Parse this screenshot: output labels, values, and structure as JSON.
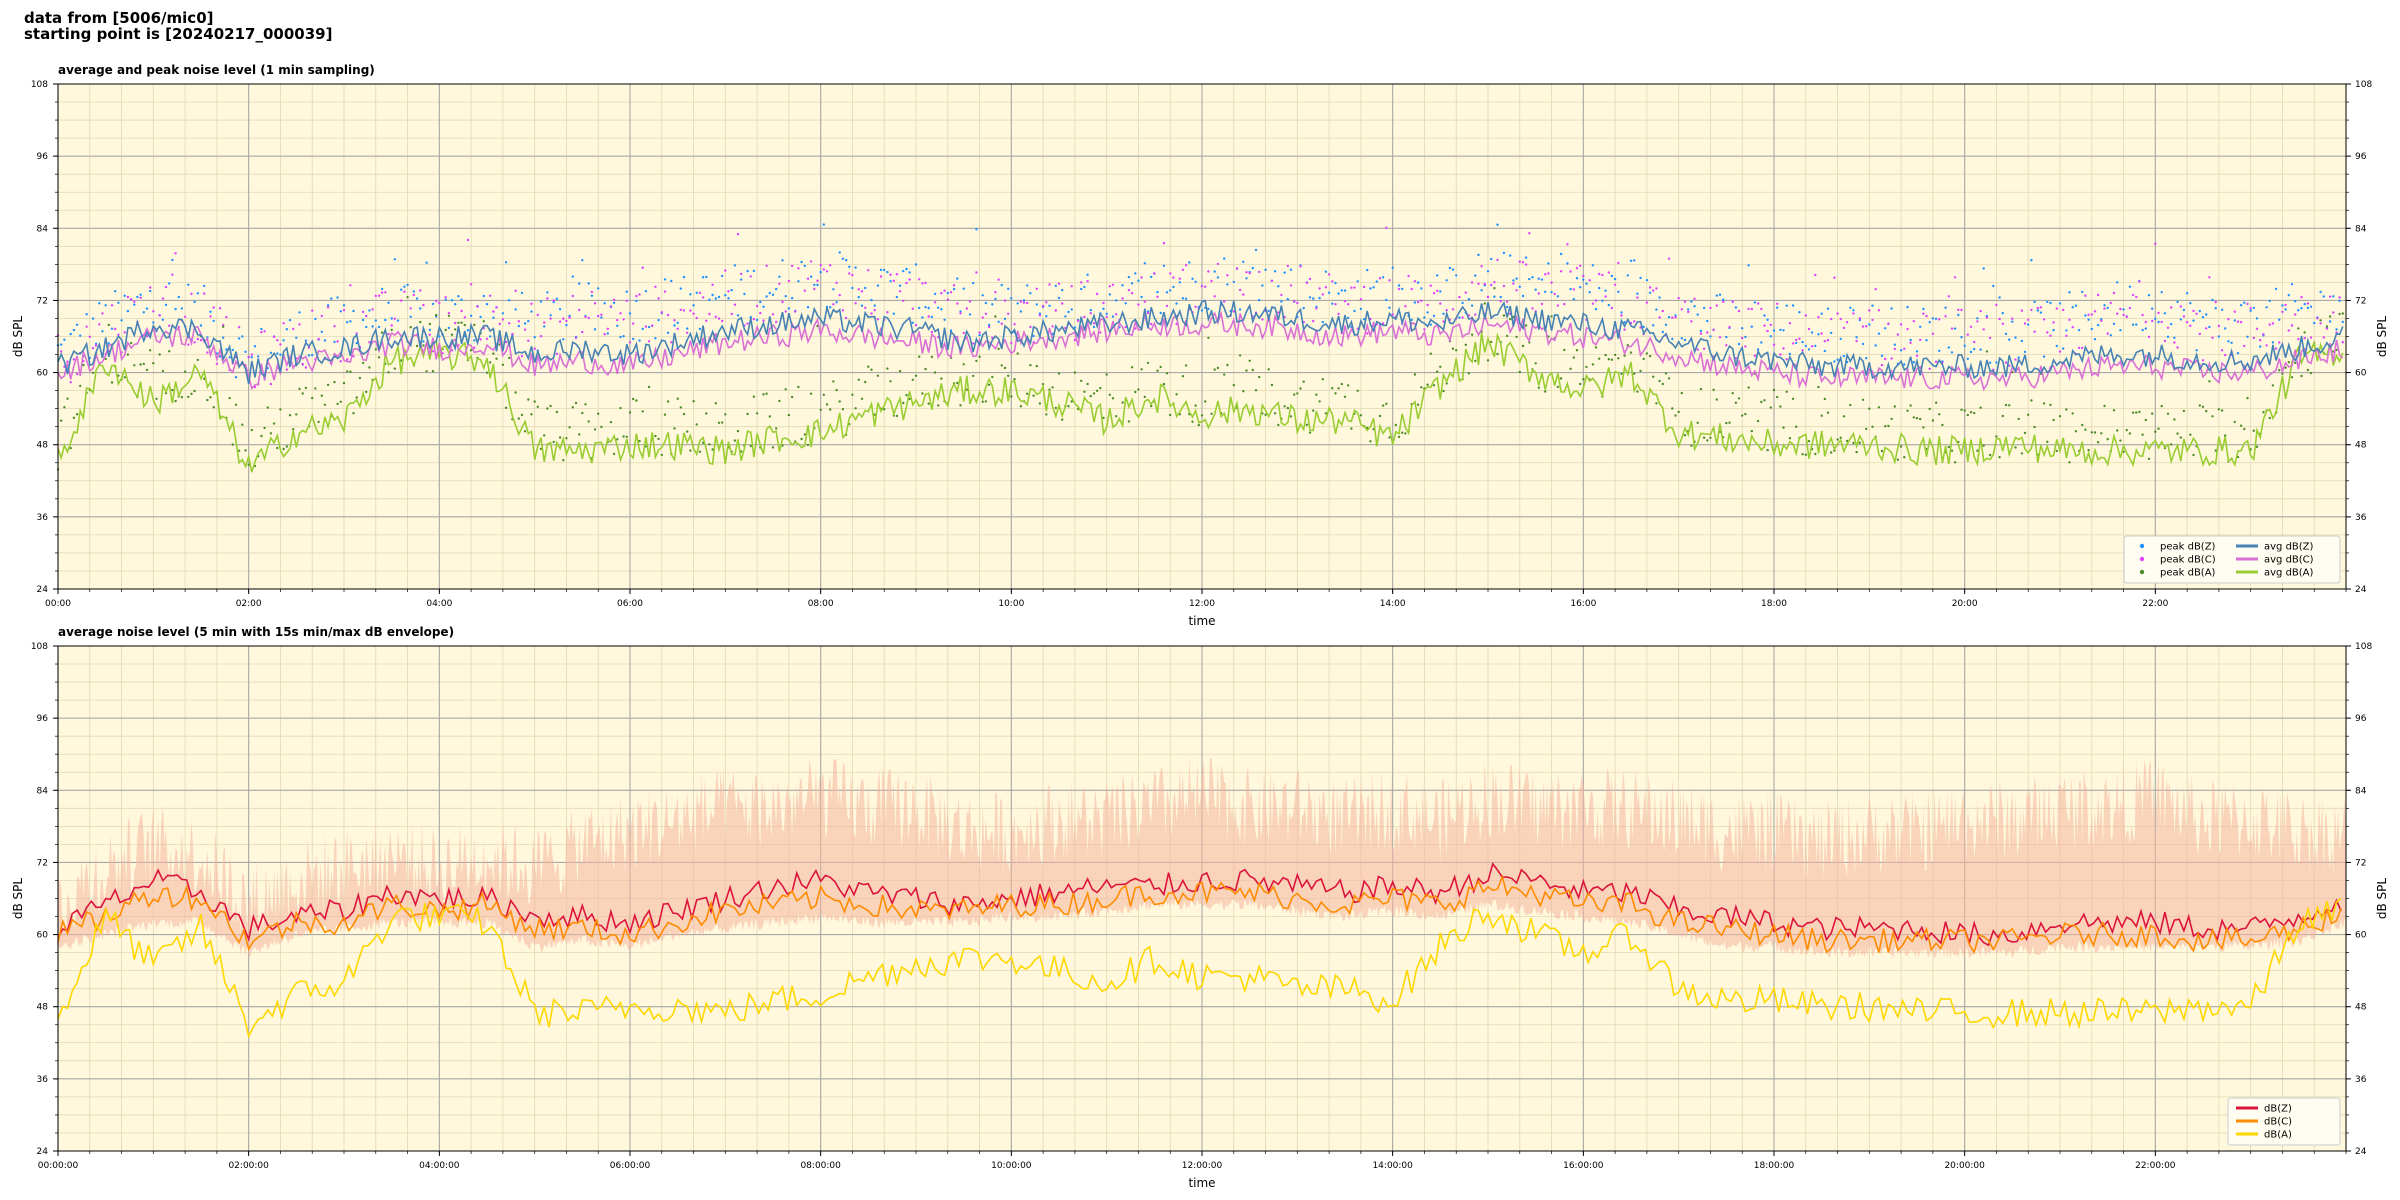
{
  "header": {
    "line1": "data from [5006/mic0]",
    "line2": "starting point is [20240217_000039]"
  },
  "colors": {
    "background": "#fff8dc",
    "grid_major": "#a9a9a9",
    "grid_minor": "#e2d8b4",
    "peak_z": "#1e90ff",
    "peak_c": "#e040fb",
    "peak_a": "#4c8c2b",
    "avg_z": "#4682b4",
    "avg_c": "#da70d6",
    "avg_a": "#9acd32",
    "env_z": "#dc143c",
    "env_c": "#ff8c00",
    "env_a": "#ffd700",
    "envelope_fill": "#f5b5a0"
  },
  "chart_data": [
    {
      "type": "line",
      "title": "average and peak noise level (1 min sampling)",
      "xlabel": "time",
      "ylabel": "dB SPL",
      "xlim_hours": [
        0,
        24
      ],
      "ylim": [
        24,
        108
      ],
      "x_ticks": [
        0,
        2,
        4,
        6,
        8,
        10,
        12,
        14,
        16,
        18,
        20,
        22
      ],
      "x_tick_labels": [
        "00:00",
        "02:00",
        "04:00",
        "06:00",
        "08:00",
        "10:00",
        "12:00",
        "14:00",
        "16:00",
        "18:00",
        "20:00",
        "22:00"
      ],
      "y_ticks": [
        24,
        36,
        48,
        60,
        72,
        84,
        96,
        108
      ],
      "y_tick_labels": [
        "24",
        "36",
        "48",
        "60",
        "72",
        "84",
        "96",
        "108"
      ],
      "grid": true,
      "legend_position": "bottom-right",
      "legend": [
        {
          "label": "peak dB(Z)",
          "kind": "dot",
          "color_key": "peak_z"
        },
        {
          "label": "peak dB(C)",
          "kind": "dot",
          "color_key": "peak_c"
        },
        {
          "label": "peak dB(A)",
          "kind": "dot",
          "color_key": "peak_a"
        },
        {
          "label": "avg dB(Z)",
          "kind": "line",
          "color_key": "avg_z"
        },
        {
          "label": "avg dB(C)",
          "kind": "line",
          "color_key": "avg_c"
        },
        {
          "label": "avg dB(A)",
          "kind": "line",
          "color_key": "avg_a"
        }
      ],
      "x_hours": [
        0,
        0.5,
        1,
        1.5,
        2,
        2.5,
        3,
        3.5,
        4,
        4.5,
        5,
        5.5,
        6,
        6.5,
        7,
        7.5,
        8,
        8.5,
        9,
        9.5,
        10,
        10.5,
        11,
        11.5,
        12,
        12.5,
        13,
        13.5,
        14,
        14.5,
        15,
        15.5,
        16,
        16.5,
        17,
        17.5,
        18,
        18.5,
        19,
        19.5,
        20,
        20.5,
        21,
        21.5,
        22,
        22.5,
        23,
        23.5,
        24
      ],
      "series": [
        {
          "name": "avg dB(Z)",
          "color_key": "avg_z",
          "values": [
            61,
            64,
            68,
            67,
            60,
            63,
            64,
            66,
            66,
            66,
            63,
            64,
            63,
            65,
            67,
            68,
            69,
            68,
            67,
            65,
            66,
            67,
            68,
            69,
            70,
            70,
            69,
            68,
            69,
            68,
            70,
            69,
            68,
            67,
            65,
            63,
            62,
            61,
            61,
            61,
            61,
            61,
            62,
            63,
            63,
            62,
            62,
            64,
            66
          ]
        },
        {
          "name": "avg dB(C)",
          "color_key": "avg_c",
          "values": [
            60,
            63,
            66,
            66,
            59,
            62,
            62,
            65,
            64,
            65,
            61,
            62,
            61,
            63,
            65,
            66,
            67,
            66,
            65,
            64,
            65,
            66,
            67,
            68,
            68,
            68,
            67,
            66,
            67,
            66,
            68,
            67,
            66,
            65,
            63,
            61,
            60,
            59,
            59,
            59,
            59,
            59,
            60,
            61,
            61,
            60,
            60,
            62,
            64
          ]
        },
        {
          "name": "avg dB(A)",
          "color_key": "avg_a",
          "values": [
            45,
            62,
            55,
            60,
            44,
            50,
            52,
            62,
            63,
            62,
            47,
            47,
            48,
            48,
            47,
            49,
            50,
            53,
            55,
            57,
            57,
            55,
            52,
            56,
            53,
            54,
            52,
            52,
            49,
            58,
            65,
            60,
            57,
            60,
            50,
            49,
            48,
            48,
            48,
            47,
            47,
            48,
            47,
            47,
            47,
            47,
            47,
            62,
            64
          ]
        },
        {
          "name": "peak dB(Z)",
          "color_key": "peak_z",
          "values": [
            63,
            68,
            72,
            70,
            62,
            66,
            68,
            70,
            69,
            70,
            68,
            70,
            70,
            71,
            73,
            74,
            76,
            74,
            73,
            70,
            70,
            71,
            72,
            73,
            75,
            75,
            74,
            72,
            73,
            72,
            76,
            74,
            74,
            72,
            70,
            68,
            68,
            66,
            67,
            66,
            67,
            66,
            68,
            70,
            72,
            68,
            68,
            70,
            71
          ]
        },
        {
          "name": "peak dB(C)",
          "color_key": "peak_c",
          "values": [
            62,
            67,
            71,
            69,
            61,
            65,
            67,
            69,
            68,
            69,
            67,
            69,
            69,
            70,
            72,
            73,
            75,
            73,
            72,
            69,
            69,
            70,
            71,
            72,
            74,
            74,
            73,
            71,
            72,
            71,
            75,
            73,
            73,
            71,
            69,
            67,
            67,
            65,
            66,
            65,
            66,
            65,
            67,
            69,
            71,
            67,
            67,
            69,
            70
          ]
        },
        {
          "name": "peak dB(A)",
          "color_key": "peak_a",
          "values": [
            48,
            64,
            58,
            62,
            47,
            53,
            55,
            64,
            65,
            64,
            50,
            50,
            51,
            51,
            50,
            52,
            53,
            56,
            58,
            59,
            59,
            57,
            55,
            58,
            56,
            57,
            55,
            55,
            52,
            60,
            67,
            62,
            60,
            62,
            53,
            52,
            51,
            51,
            51,
            50,
            50,
            51,
            50,
            50,
            50,
            50,
            50,
            64,
            66
          ]
        }
      ]
    },
    {
      "type": "line",
      "title": "average noise level (5 min with 15s min/max dB envelope)",
      "xlabel": "time",
      "ylabel": "dB SPL",
      "xlim_hours": [
        0,
        24
      ],
      "ylim": [
        24,
        108
      ],
      "x_ticks": [
        0,
        2,
        4,
        6,
        8,
        10,
        12,
        14,
        16,
        18,
        20,
        22
      ],
      "x_tick_labels": [
        "00:00:00",
        "02:00:00",
        "04:00:00",
        "06:00:00",
        "08:00:00",
        "10:00:00",
        "12:00:00",
        "14:00:00",
        "16:00:00",
        "18:00:00",
        "20:00:00",
        "22:00:00"
      ],
      "y_ticks": [
        24,
        36,
        48,
        60,
        72,
        84,
        96,
        108
      ],
      "y_tick_labels": [
        "24",
        "36",
        "48",
        "60",
        "72",
        "84",
        "96",
        "108"
      ],
      "grid": true,
      "legend_position": "bottom-right",
      "legend": [
        {
          "label": "dB(Z)",
          "kind": "line",
          "color_key": "env_z"
        },
        {
          "label": "dB(C)",
          "kind": "line",
          "color_key": "env_c"
        },
        {
          "label": "dB(A)",
          "kind": "line",
          "color_key": "env_a"
        }
      ],
      "x_hours": [
        0,
        0.5,
        1,
        1.5,
        2,
        2.5,
        3,
        3.5,
        4,
        4.5,
        5,
        5.5,
        6,
        6.5,
        7,
        7.5,
        8,
        8.5,
        9,
        9.5,
        10,
        10.5,
        11,
        11.5,
        12,
        12.5,
        13,
        13.5,
        14,
        14.5,
        15,
        15.5,
        16,
        16.5,
        17,
        17.5,
        18,
        18.5,
        19,
        19.5,
        20,
        20.5,
        21,
        21.5,
        22,
        22.5,
        23,
        23.5,
        24
      ],
      "envelope": {
        "lower": [
          58,
          60,
          62,
          62,
          57,
          60,
          61,
          62,
          62,
          62,
          58,
          59,
          58,
          60,
          61,
          62,
          63,
          62,
          62,
          62,
          63,
          63,
          64,
          65,
          65,
          65,
          64,
          63,
          64,
          63,
          65,
          64,
          63,
          62,
          60,
          58,
          58,
          57,
          57,
          57,
          57,
          57,
          58,
          58,
          58,
          58,
          58,
          59,
          62
        ],
        "upper": [
          64,
          70,
          74,
          72,
          64,
          68,
          70,
          72,
          70,
          72,
          70,
          74,
          76,
          78,
          80,
          80,
          82,
          80,
          80,
          76,
          76,
          78,
          78,
          80,
          82,
          80,
          80,
          78,
          80,
          78,
          82,
          80,
          80,
          80,
          78,
          76,
          76,
          74,
          76,
          76,
          78,
          78,
          80,
          80,
          82,
          78,
          78,
          76,
          76
        ]
      },
      "series": [
        {
          "name": "dB(Z)",
          "color_key": "env_z",
          "values": [
            61,
            65,
            69,
            67,
            61,
            63,
            64,
            67,
            66,
            66,
            63,
            63,
            62,
            64,
            66,
            68,
            69,
            67,
            66,
            65,
            66,
            67,
            68,
            68,
            69,
            69,
            68,
            67,
            68,
            67,
            70,
            69,
            67,
            67,
            64,
            63,
            62,
            61,
            61,
            61,
            60,
            60,
            62,
            62,
            62,
            61,
            61,
            63,
            66
          ]
        },
        {
          "name": "dB(C)",
          "color_key": "env_c",
          "values": [
            60,
            63,
            67,
            66,
            59,
            62,
            62,
            65,
            64,
            65,
            61,
            61,
            60,
            62,
            64,
            65,
            66,
            65,
            64,
            64,
            65,
            65,
            66,
            67,
            67,
            67,
            66,
            65,
            66,
            65,
            68,
            67,
            65,
            65,
            62,
            61,
            60,
            59,
            59,
            59,
            59,
            59,
            60,
            60,
            60,
            59,
            59,
            61,
            64
          ]
        },
        {
          "name": "dB(A)",
          "color_key": "env_a",
          "values": [
            46,
            63,
            55,
            61,
            45,
            50,
            52,
            63,
            63,
            62,
            47,
            47,
            48,
            48,
            47,
            49,
            50,
            53,
            55,
            56,
            56,
            54,
            52,
            56,
            53,
            53,
            51,
            51,
            49,
            58,
            64,
            60,
            57,
            60,
            51,
            49,
            49,
            48,
            48,
            47,
            47,
            47,
            47,
            47,
            47,
            48,
            48,
            62,
            64
          ]
        }
      ]
    }
  ]
}
